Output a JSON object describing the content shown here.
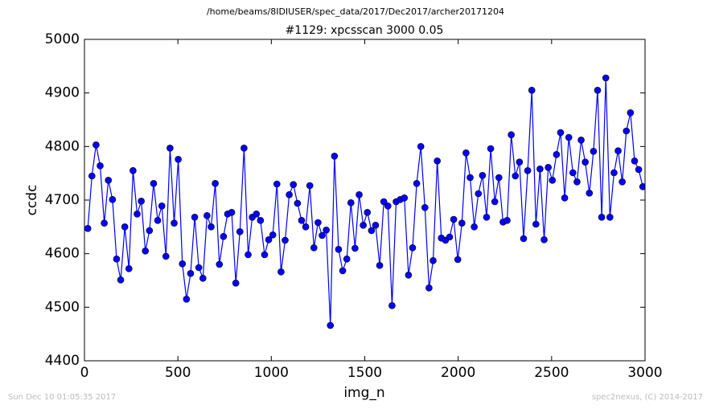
{
  "chart_data": {
    "type": "line",
    "suptitle": "/home/beams/8IDIUSER/spec_data/2017/Dec2017/archer20171204",
    "title": "#1129: xpcsscan 3000 0.05",
    "x_label": "img_n",
    "y_label": "ccdc",
    "footer_left": "Sun Dec 10 01:05:35 2017",
    "footer_right": "spec2nexus, (C) 2014-2017",
    "xlim": [
      0,
      3000
    ],
    "xticks": [
      0,
      500,
      1000,
      1500,
      2000,
      2500,
      3000
    ],
    "ylim": [
      4400,
      5000
    ],
    "yticks": [
      4400,
      4500,
      4600,
      4700,
      4800,
      4900,
      5000
    ],
    "x": [
      18,
      40,
      62,
      84,
      106,
      128,
      150,
      172,
      194,
      216,
      238,
      260,
      282,
      304,
      326,
      348,
      370,
      392,
      414,
      436,
      458,
      480,
      502,
      524,
      546,
      568,
      590,
      612,
      634,
      656,
      678,
      700,
      722,
      744,
      766,
      788,
      810,
      832,
      854,
      876,
      898,
      920,
      942,
      964,
      986,
      1008,
      1030,
      1052,
      1074,
      1096,
      1118,
      1140,
      1162,
      1184,
      1206,
      1228,
      1250,
      1272,
      1294,
      1316,
      1338,
      1360,
      1382,
      1404,
      1426,
      1448,
      1470,
      1492,
      1514,
      1536,
      1558,
      1580,
      1602,
      1624,
      1646,
      1668,
      1690,
      1712,
      1734,
      1756,
      1778,
      1800,
      1822,
      1844,
      1866,
      1888,
      1910,
      1932,
      1954,
      1976,
      1998,
      2020,
      2042,
      2064,
      2086,
      2108,
      2130,
      2152,
      2174,
      2196,
      2218,
      2240,
      2262,
      2284,
      2306,
      2328,
      2350,
      2372,
      2394,
      2416,
      2438,
      2460,
      2482,
      2504,
      2526,
      2548,
      2570,
      2592,
      2614,
      2636,
      2658,
      2680,
      2702,
      2724,
      2746,
      2768,
      2790,
      2812,
      2834,
      2856,
      2878,
      2900,
      2922,
      2944,
      2966,
      2988
    ],
    "series": [
      {
        "color": "#0000ff",
        "values": [
          4647,
          4745,
          4803,
          4764,
          4657,
          4737,
          4701,
          4590,
          4551,
          4650,
          4572,
          4755,
          4674,
          4698,
          4605,
          4643,
          4731,
          4662,
          4689,
          4595,
          4797,
          4657,
          4776,
          4581,
          4515,
          4563,
          4668,
          4574,
          4554,
          4671,
          4650,
          4731,
          4580,
          4632,
          4674,
          4677,
          4545,
          4641,
          4797,
          4598,
          4668,
          4674,
          4662,
          4598,
          4626,
          4635,
          4730,
          4566,
          4625,
          4710,
          4729,
          4694,
          4662,
          4650,
          4727,
          4611,
          4658,
          4634,
          4644,
          4466,
          4782,
          4608,
          4568,
          4590,
          4695,
          4610,
          4710,
          4653,
          4677,
          4643,
          4653,
          4578,
          4697,
          4689,
          4503,
          4697,
          4701,
          4704,
          4560,
          4611,
          4731,
          4800,
          4686,
          4536,
          4587,
          4773,
          4629,
          4625,
          4631,
          4664,
          4589,
          4657,
          4788,
          4742,
          4650,
          4712,
          4746,
          4668,
          4796,
          4697,
          4742,
          4659,
          4662,
          4822,
          4745,
          4771,
          4628,
          4755,
          4905,
          4655,
          4758,
          4626,
          4761,
          4737,
          4785,
          4826,
          4704,
          4817,
          4751,
          4734,
          4812,
          4771,
          4713,
          4791,
          4905,
          4668,
          4928,
          4668,
          4751,
          4792,
          4734,
          4829,
          4863,
          4773,
          4757,
          4725
        ]
      }
    ]
  }
}
